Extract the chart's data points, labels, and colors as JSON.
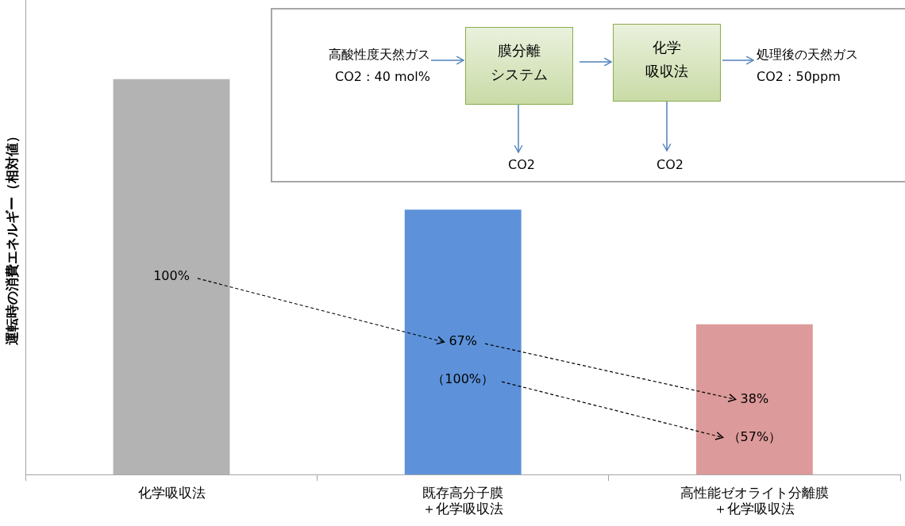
{
  "chart_data": {
    "type": "bar",
    "ylabel": "運転時の消費エネルギー（相対値）",
    "categories": [
      "化学吸収法",
      "既存高分子膜＋化学吸収法",
      "高性能ゼオライト分離膜＋化学吸収法"
    ],
    "values": [
      100,
      67,
      38
    ],
    "colors": [
      "#b3b3b3",
      "#5d92da",
      "#dd9a9a"
    ],
    "value_labels": [
      "100%",
      "67%",
      "38%"
    ],
    "ylim": [
      0,
      120
    ],
    "tick_labels": "x",
    "grid": false,
    "legend": false,
    "annotations": [
      "高酸性度天然ガス",
      "CO2 : 40 mol%",
      "膜分離",
      "システム",
      "化学",
      "吸収法",
      "処理後の天然ガス",
      "CO2 : 50ppm",
      "CO2",
      "CO2",
      "（100%）",
      "（57%）"
    ]
  }
}
